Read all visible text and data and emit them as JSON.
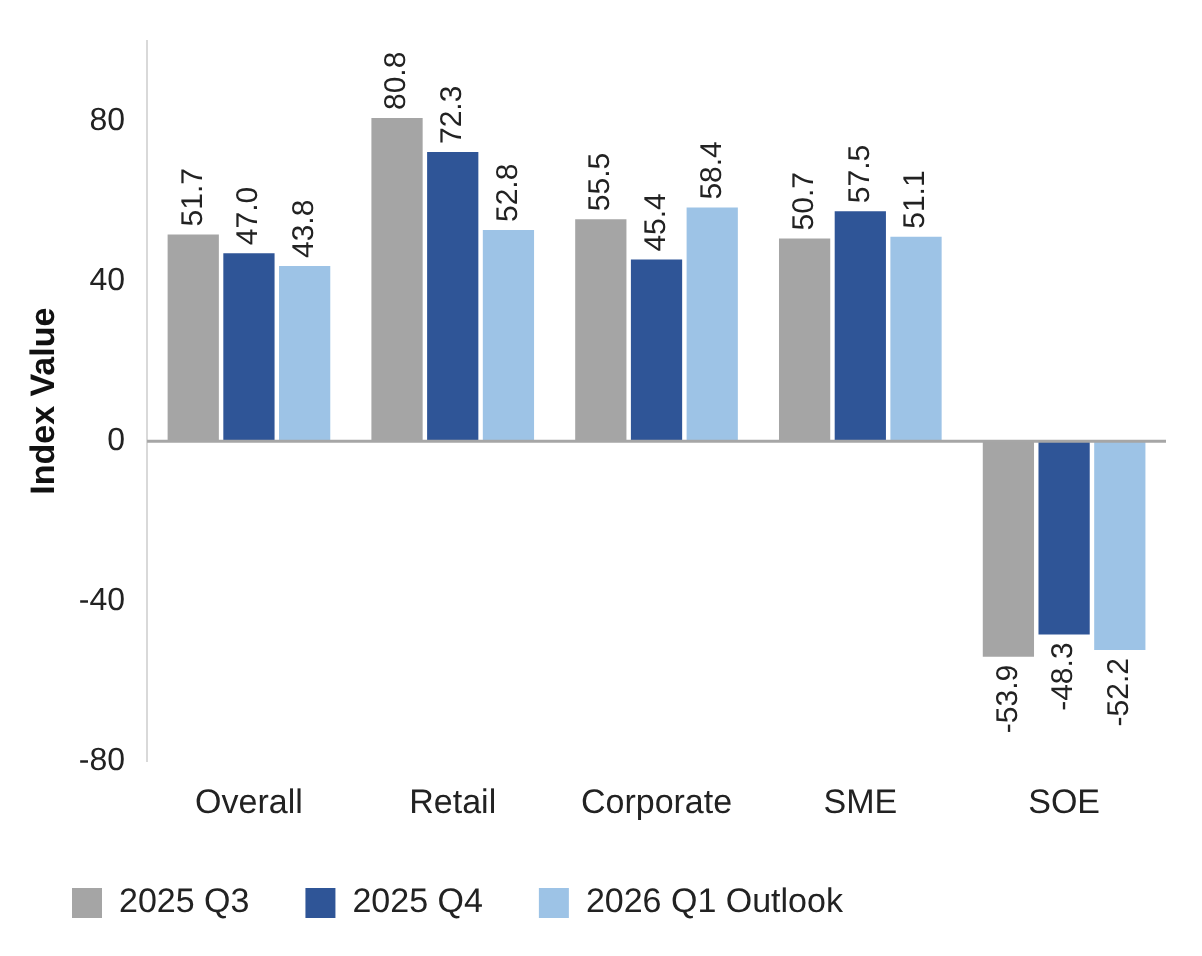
{
  "chart_data": {
    "type": "bar",
    "ylabel": "Index Value",
    "categories": [
      "Overall",
      "Retail",
      "Corporate",
      "SME",
      "SOE"
    ],
    "series": [
      {
        "name": "2025 Q3",
        "color": "#a5a5a5",
        "values": [
          51.7,
          80.8,
          55.5,
          50.7,
          -53.9
        ],
        "value_labels": [
          "51.7",
          "80.8",
          "55.5",
          "50.7",
          "-53.9"
        ]
      },
      {
        "name": "2025 Q4",
        "color": "#2f5597",
        "values": [
          47.0,
          72.3,
          45.4,
          57.5,
          -48.3
        ],
        "value_labels": [
          "47.0",
          "72.3",
          "45.4",
          "57.5",
          "-48.3"
        ]
      },
      {
        "name": "2026 Q1 Outlook",
        "color": "#9dc3e6",
        "values": [
          43.8,
          52.8,
          58.4,
          51.1,
          -52.2
        ],
        "value_labels": [
          "43.8",
          "52.8",
          "58.4",
          "51.1",
          "-52.2"
        ]
      }
    ],
    "ylim": [
      -80,
      100
    ],
    "yticks": [
      -80,
      -40,
      0,
      40,
      80
    ],
    "legend": "bottom"
  }
}
